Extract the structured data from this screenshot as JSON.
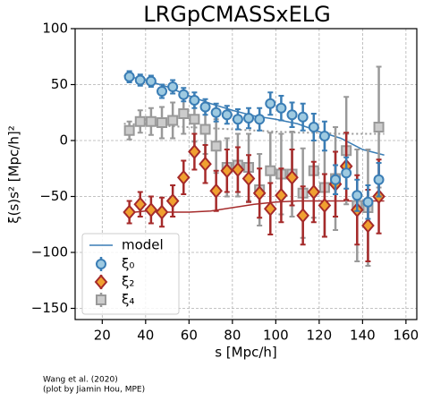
{
  "chart_data": {
    "type": "errorbar",
    "title": "LRGpCMASSxELG",
    "x_label": "s [Mpc/h]",
    "y_label": "ξ(s)s² [Mpc/h]²",
    "annotation": [
      "Wang et al. (2020)",
      "(plot by Jiamin Hou, MPE)"
    ],
    "x": [
      32.5,
      37.5,
      42.5,
      47.5,
      52.5,
      57.5,
      62.5,
      67.5,
      72.5,
      77.5,
      82.5,
      87.5,
      92.5,
      97.5,
      102.5,
      107.5,
      112.5,
      117.5,
      122.5,
      127.5,
      132.5,
      137.5,
      142.5,
      147.5
    ],
    "series": [
      {
        "name": "ξ₀",
        "color": "#3a7db5",
        "fill": "#9ecae1",
        "marker": "circle",
        "values": [
          57,
          54,
          53,
          44,
          48,
          41,
          36,
          30,
          25,
          23,
          19,
          20,
          19,
          33,
          29,
          23,
          21,
          12,
          4,
          -35,
          -29,
          -49,
          -55,
          -35
        ],
        "errors": [
          5,
          5,
          5,
          6,
          6,
          6,
          7,
          7,
          8,
          8,
          9,
          9,
          10,
          10,
          11,
          11,
          12,
          12,
          13,
          13,
          14,
          14,
          15,
          15
        ]
      },
      {
        "name": "ξ₂",
        "color": "#a52a2a",
        "fill": "#f0a030",
        "marker": "diamond",
        "values": [
          -64,
          -57,
          -62,
          -64,
          -54,
          -33,
          -10,
          -21,
          -45,
          -27,
          -26,
          -34,
          -47,
          -61,
          -49,
          -33,
          -67,
          -46,
          -58,
          -39,
          -23,
          -62,
          -76,
          -50
        ],
        "errors": [
          10,
          11,
          12,
          13,
          14,
          15,
          16,
          17,
          18,
          19,
          20,
          21,
          22,
          23,
          24,
          25,
          26,
          27,
          28,
          29,
          30,
          31,
          32,
          33
        ]
      },
      {
        "name": "ξ₄",
        "color": "#999999",
        "fill": "#cccccc",
        "marker": "square",
        "values": [
          9,
          17,
          17,
          16,
          18,
          24,
          19,
          10,
          -5,
          -24,
          -22,
          -24,
          -44,
          -27,
          -30,
          -30,
          -47,
          -27,
          -42,
          -34,
          -9,
          -58,
          -60,
          12
        ],
        "errors": [
          8,
          10,
          12,
          14,
          16,
          18,
          20,
          22,
          24,
          26,
          28,
          30,
          32,
          34,
          36,
          38,
          40,
          42,
          44,
          46,
          48,
          50,
          52,
          54
        ]
      }
    ],
    "model_x": [
      30,
      40,
      50,
      60,
      70,
      80,
      90,
      100,
      110,
      120,
      130,
      140,
      150
    ],
    "models": [
      {
        "name": "model",
        "color": "#3a7db5",
        "values": [
          58,
          54,
          48,
          40,
          33,
          27,
          22,
          19,
          15,
          8,
          2,
          -8,
          -13
        ]
      },
      {
        "color": "#a52a2a",
        "values": [
          -65,
          -63,
          -64,
          -64,
          -63,
          -60,
          -57,
          -55,
          -54,
          -54,
          -54,
          -54,
          -54
        ]
      },
      {
        "color": "#999999",
        "dotted": true,
        "values": [
          15,
          14,
          13,
          12,
          11,
          10,
          9,
          8,
          7,
          7,
          6,
          6,
          6
        ]
      }
    ],
    "xlim": [
      7.5,
      165
    ],
    "ylim": [
      -160,
      100
    ],
    "xticks": [
      20,
      40,
      60,
      80,
      100,
      120,
      140,
      160
    ],
    "yticks": [
      {
        "value": -150,
        "label": "−150"
      },
      {
        "value": -100,
        "label": "−100"
      },
      {
        "value": -50,
        "label": "−50"
      },
      0,
      50,
      100
    ],
    "grid": true,
    "legend": "lower left"
  }
}
